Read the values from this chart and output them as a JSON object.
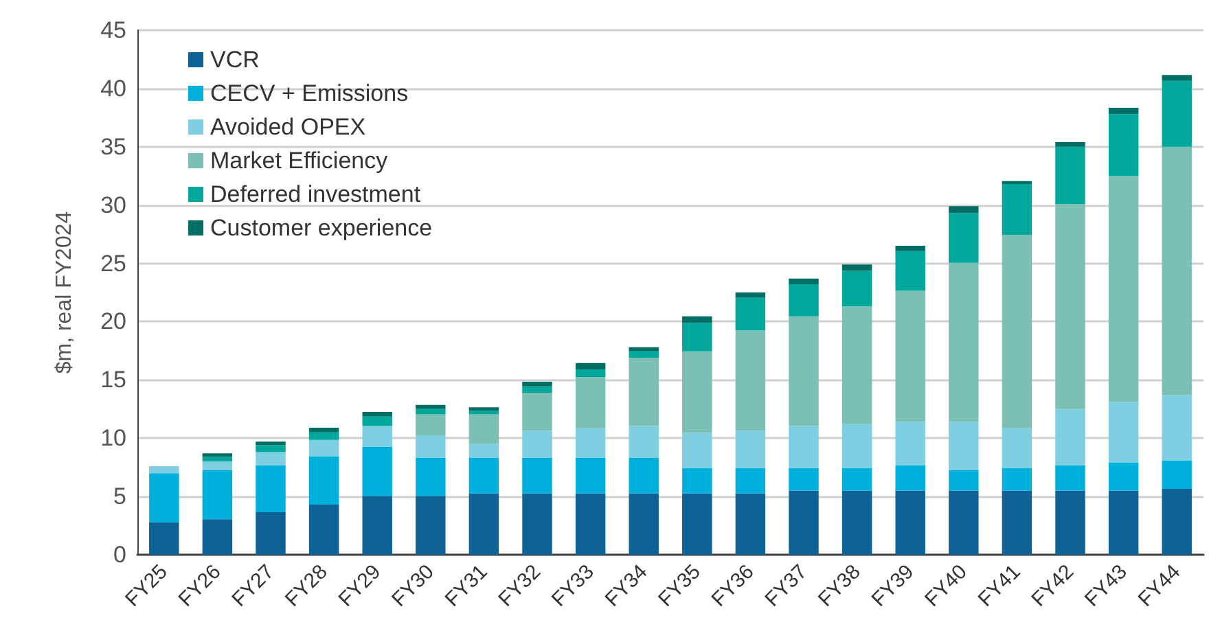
{
  "chart_data": {
    "type": "bar",
    "stacked": true,
    "ylabel": "$m, real FY2024",
    "ylim": [
      0,
      45
    ],
    "yticks": [
      0,
      5,
      10,
      15,
      20,
      25,
      30,
      35,
      40,
      45
    ],
    "grid": "y",
    "legend": "top left",
    "categories": [
      "FY25",
      "FY26",
      "FY27",
      "FY28",
      "FY29",
      "FY30",
      "FY31",
      "FY32",
      "FY33",
      "FY34",
      "FY35",
      "FY36",
      "FY37",
      "FY38",
      "FY39",
      "FY40",
      "FY41",
      "FY42",
      "FY43",
      "FY44"
    ],
    "series": [
      {
        "name": "VCR",
        "color": "#0e6296",
        "values": [
          2.8,
          3.05,
          3.65,
          4.3,
          5.05,
          5.05,
          5.25,
          5.25,
          5.25,
          5.25,
          5.25,
          5.25,
          5.5,
          5.5,
          5.5,
          5.5,
          5.5,
          5.5,
          5.5,
          5.65
        ]
      },
      {
        "name": "CECV + Emissions",
        "color": "#00b0dc",
        "values": [
          4.2,
          4.2,
          4.0,
          4.15,
          4.2,
          3.25,
          3.05,
          3.05,
          3.05,
          3.05,
          2.2,
          2.2,
          1.95,
          1.95,
          2.15,
          1.75,
          1.95,
          2.15,
          2.4,
          2.45
        ]
      },
      {
        "name": "Avoided OPEX",
        "color": "#7fcfe2",
        "values": [
          0.6,
          0.75,
          1.15,
          1.4,
          1.8,
          1.95,
          1.2,
          2.35,
          2.55,
          2.75,
          3.0,
          3.2,
          3.6,
          3.75,
          3.75,
          4.15,
          3.4,
          4.85,
          5.2,
          5.6
        ]
      },
      {
        "name": "Market Efficiency",
        "color": "#7bbfb5",
        "values": [
          0,
          0,
          0,
          0,
          0,
          1.8,
          2.55,
          3.25,
          4.4,
          5.85,
          7.0,
          8.6,
          9.4,
          10.1,
          11.25,
          13.65,
          16.6,
          17.6,
          19.4,
          21.3
        ]
      },
      {
        "name": "Deferred investment",
        "color": "#00a79a",
        "values": [
          0,
          0.4,
          0.6,
          0.65,
          0.8,
          0.45,
          0.3,
          0.55,
          0.65,
          0.55,
          2.45,
          2.8,
          2.75,
          3.05,
          3.4,
          4.25,
          4.35,
          4.9,
          5.3,
          5.65
        ]
      },
      {
        "name": "Customer experience",
        "color": "#006e64",
        "values": [
          0,
          0.3,
          0.3,
          0.4,
          0.4,
          0.35,
          0.3,
          0.4,
          0.55,
          0.35,
          0.55,
          0.45,
          0.5,
          0.55,
          0.45,
          0.6,
          0.25,
          0.4,
          0.55,
          0.5
        ]
      }
    ]
  }
}
